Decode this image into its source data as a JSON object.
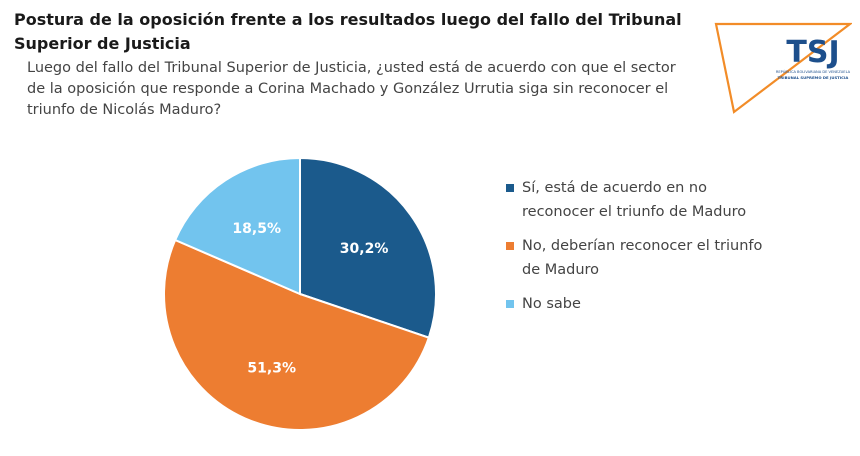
{
  "title": "Postura de la oposición frente a los resultados luego del fallo del Tribunal Superior de Justicia",
  "subtitle": "Luego del fallo del Tribunal Superior de Justicia, ¿usted está de acuerdo con que el sector de la oposición que responde a Corina Machado y González Urrutia siga sin reconocer el triunfo de Nicolás Maduro?",
  "logo": {
    "mark": "TSJ",
    "line1": "REPÚBLICA BOLIVARIANA DE VENEZUELA",
    "line2": "TRIBUNAL SUPREMO DE JUSTICIA",
    "colors": {
      "frame": "#f28c28",
      "brand": "#1d4f8c"
    }
  },
  "chart_data": {
    "type": "pie",
    "labels": [
      "Sí, está de acuerdo en no reconocer el triunfo de Maduro",
      "No, deberían reconocer el triunfo de Maduro",
      "No sabe"
    ],
    "values": [
      30.2,
      51.3,
      18.5
    ],
    "value_labels": [
      "30,2%",
      "51,3%",
      "18,5%"
    ],
    "colors": [
      "#1b5a8c",
      "#ed7d31",
      "#72c4ee"
    ],
    "start": "12 o'clock, clockwise",
    "legend_position": "right"
  }
}
